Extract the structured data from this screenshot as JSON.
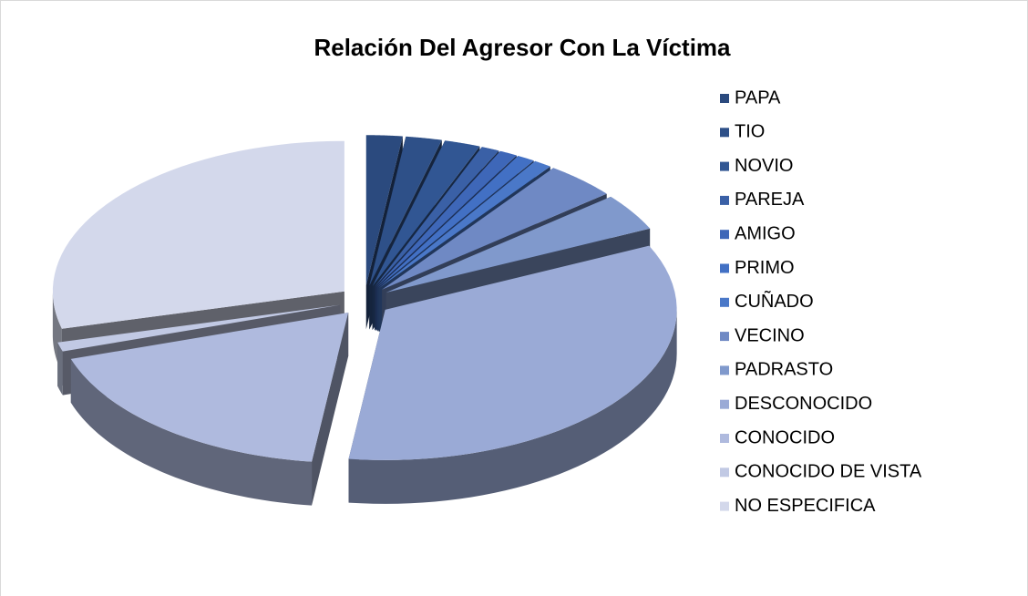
{
  "chart_data": {
    "type": "pie3d",
    "title": "Relación Del Agresor Con La Víctima",
    "categories": [
      "PAPA",
      "TIO",
      "NOVIO",
      "PAREJA",
      "AMIGO",
      "PRIMO",
      "CUÑADO",
      "VECINO",
      "PADRASTO",
      "DESCONOCIDO",
      "CONOCIDO",
      "CONOCIDO DE VISTA",
      "NO ESPECIFICA"
    ],
    "values": [
      2,
      2,
      2,
      1,
      1,
      1,
      1,
      4,
      4,
      34,
      18,
      1,
      29
    ],
    "colors": [
      "#2b4a7e",
      "#2e5088",
      "#315693",
      "#3a60a6",
      "#3e67b8",
      "#4270c4",
      "#4a78c8",
      "#6f89c4",
      "#8099cc",
      "#9aaad6",
      "#afbade",
      "#c1c9e4",
      "#d3d8eb"
    ],
    "legend": "right"
  }
}
